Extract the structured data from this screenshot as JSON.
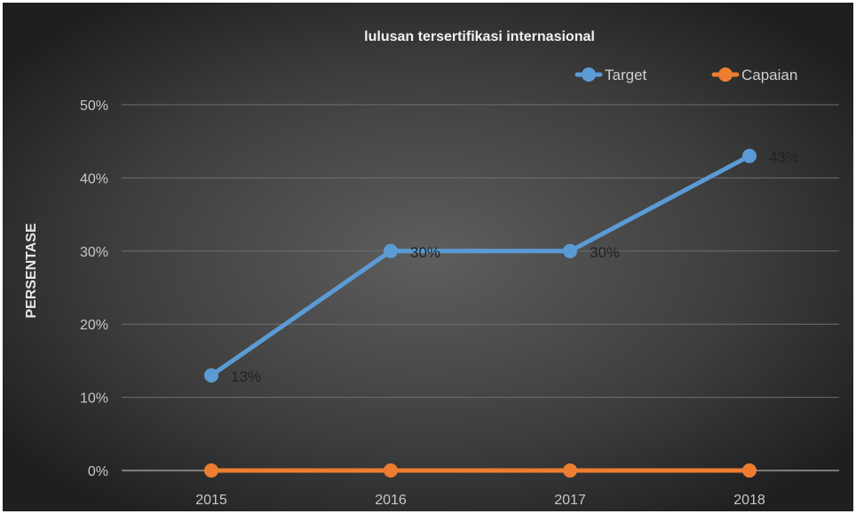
{
  "chart_data": {
    "type": "line",
    "title": "lulusan tersertifikasi internasional",
    "xlabel": "",
    "ylabel": "PERSENTASE",
    "categories": [
      "2015",
      "2016",
      "2017",
      "2018"
    ],
    "ylim": [
      0,
      50
    ],
    "yticks": [
      0,
      10,
      20,
      30,
      40,
      50
    ],
    "ytick_labels": [
      "0%",
      "10%",
      "20%",
      "30%",
      "40%",
      "50%"
    ],
    "grid": true,
    "legend_position": "top-right",
    "background": "dark radial gradient",
    "series": [
      {
        "name": "Target",
        "color": "#5B9BD5",
        "values": [
          13,
          30,
          30,
          43
        ],
        "data_labels": [
          "13%",
          "30%",
          "30%",
          "43%"
        ]
      },
      {
        "name": "Capaian",
        "color": "#ED7D31",
        "values": [
          0,
          0,
          0,
          0
        ]
      }
    ]
  }
}
